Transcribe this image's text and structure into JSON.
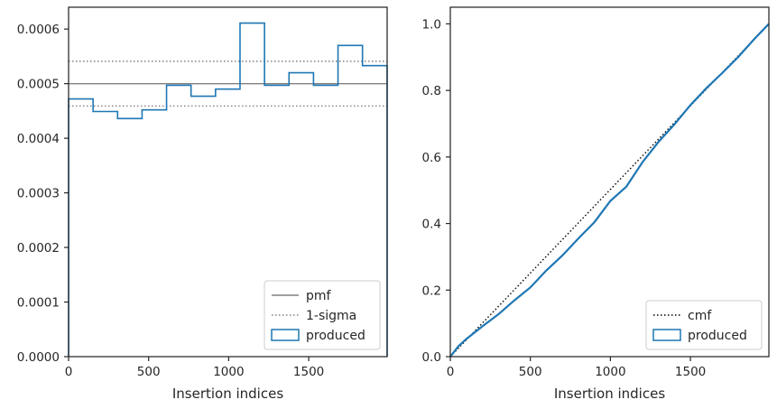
{
  "chart_data": [
    {
      "type": "histogram",
      "xlabel": "Insertion indices",
      "ylabel": "",
      "xlim": [
        0,
        1990
      ],
      "ylim": [
        0,
        0.00064
      ],
      "xticks": [
        0,
        500,
        1000,
        1500
      ],
      "xtick_labels": [
        "0",
        "500",
        "1000",
        "1500"
      ],
      "yticks": [
        0,
        0.0001,
        0.0002,
        0.0003,
        0.0004,
        0.0005,
        0.0006
      ],
      "ytick_labels": [
        "0.0000",
        "0.0001",
        "0.0002",
        "0.0003",
        "0.0004",
        "0.0005",
        "0.0006"
      ],
      "grid": false,
      "legend_position": "bottom-right",
      "pmf": 0.0005,
      "sigma_bounds": [
        0.000459,
        0.000541
      ],
      "bin_edges": [
        0,
        153,
        306,
        459,
        612,
        765,
        918,
        1071,
        1224,
        1377,
        1530,
        1683,
        1836,
        1990
      ],
      "values": [
        0.000472,
        0.000449,
        0.000436,
        0.000452,
        0.000497,
        0.000477,
        0.00049,
        0.000611,
        0.000497,
        0.00052,
        0.000497,
        0.00057,
        0.000533
      ],
      "legend": [
        {
          "label": "pmf",
          "style": "solid",
          "color": "#808080"
        },
        {
          "label": "1-sigma",
          "style": "dotted",
          "color": "#808080"
        },
        {
          "label": "produced",
          "style": "patch",
          "color": "#1f77b4"
        }
      ]
    },
    {
      "type": "line",
      "xlabel": "Insertion indices",
      "ylabel": "",
      "xlim": [
        0,
        1990
      ],
      "ylim": [
        0,
        1.05
      ],
      "xticks": [
        0,
        500,
        1000,
        1500
      ],
      "xtick_labels": [
        "0",
        "500",
        "1000",
        "1500"
      ],
      "yticks": [
        0,
        0.2,
        0.4,
        0.6,
        0.8,
        1.0
      ],
      "ytick_labels": [
        "0.0",
        "0.2",
        "0.4",
        "0.6",
        "0.8",
        "1.0"
      ],
      "grid": false,
      "legend_position": "bottom-right",
      "series": [
        {
          "name": "cmf",
          "style": "dotted",
          "color": "#000000",
          "x": [
            0,
            1990
          ],
          "y": [
            0,
            1.0
          ]
        },
        {
          "name": "produced",
          "style": "solid",
          "color": "#1f77b4",
          "x": [
            0,
            50,
            100,
            150,
            200,
            300,
            400,
            500,
            600,
            700,
            800,
            900,
            1000,
            1100,
            1200,
            1300,
            1400,
            1500,
            1600,
            1700,
            1800,
            1900,
            1990
          ],
          "y": [
            0,
            0.031,
            0.053,
            0.072,
            0.091,
            0.127,
            0.169,
            0.208,
            0.259,
            0.304,
            0.355,
            0.404,
            0.468,
            0.511,
            0.584,
            0.645,
            0.698,
            0.756,
            0.807,
            0.853,
            0.901,
            0.955,
            1.0
          ]
        }
      ],
      "legend": [
        {
          "label": "cmf",
          "style": "dotted",
          "color": "#000000"
        },
        {
          "label": "produced",
          "style": "patch",
          "color": "#1f77b4"
        }
      ]
    }
  ]
}
